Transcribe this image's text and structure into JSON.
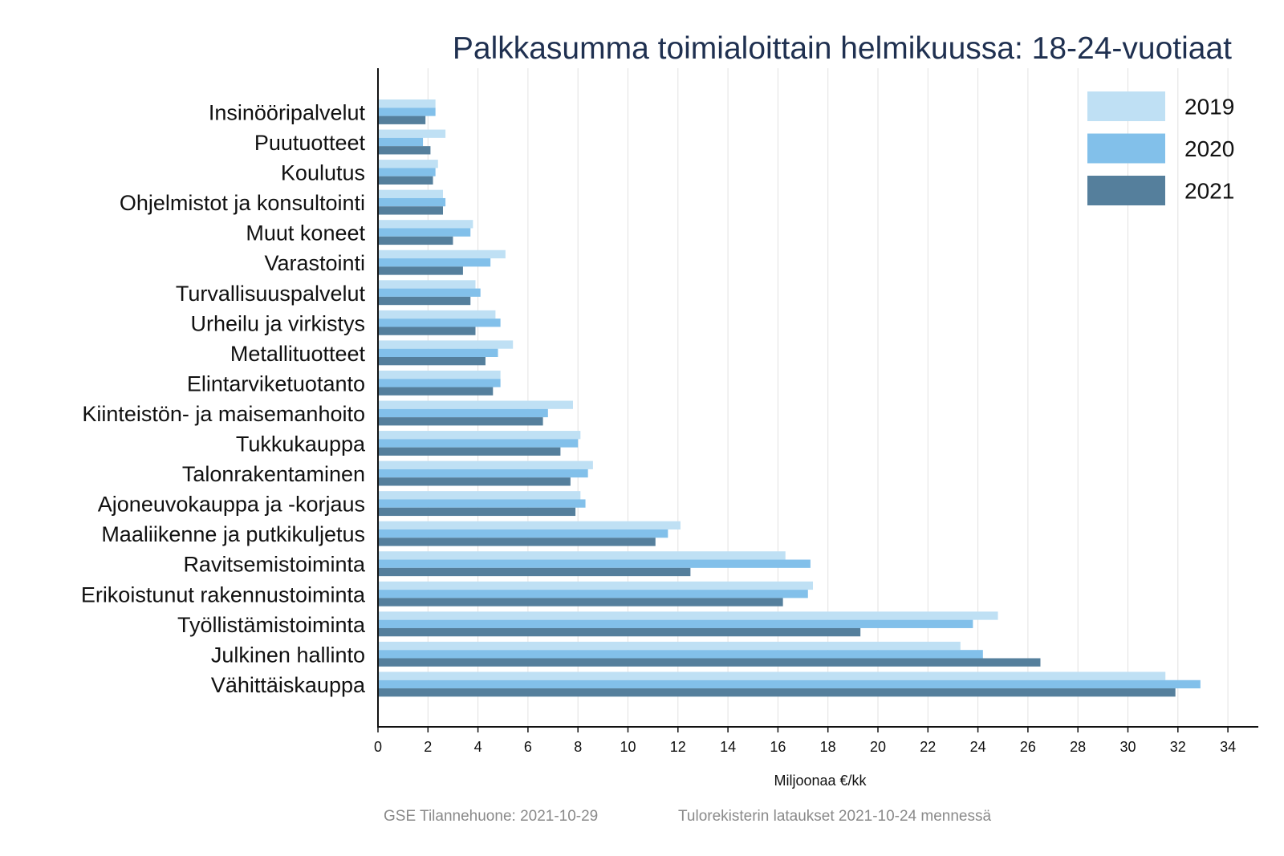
{
  "chart_data": {
    "type": "bar",
    "orientation": "horizontal",
    "title": "Palkkasumma toimialoittain helmikuussa: 18-24-vuotiaat",
    "xlabel": "Miljoonaa €/kk",
    "ylabel": "",
    "xlim": [
      0,
      35
    ],
    "xticks": [
      0,
      2,
      4,
      6,
      8,
      10,
      12,
      14,
      16,
      18,
      20,
      22,
      24,
      26,
      28,
      30,
      32,
      34
    ],
    "grid": "vertical",
    "legend_position": "top-right",
    "categories": [
      "Insinööripalvelut",
      "Puutuotteet",
      "Koulutus",
      "Ohjelmistot ja konsultointi",
      "Muut koneet",
      "Varastointi",
      "Turvallisuuspalvelut",
      "Urheilu ja virkistys",
      "Metallituotteet",
      "Elintarviketuotanto",
      "Kiinteistön- ja maisemanhoito",
      "Tukkukauppa",
      "Talonrakentaminen",
      "Ajoneuvokauppa ja -korjaus",
      "Maaliikenne ja putkikuljetus",
      "Ravitsemistoiminta",
      "Erikoistunut rakennustoiminta",
      "Työllistämistoiminta",
      "Julkinen hallinto",
      "Vähittäiskauppa"
    ],
    "series": [
      {
        "name": "2019",
        "color": "#bfe0f4",
        "values": [
          2.3,
          2.7,
          2.4,
          2.6,
          3.8,
          5.1,
          3.9,
          4.7,
          5.4,
          4.9,
          7.8,
          8.1,
          8.6,
          8.1,
          12.1,
          16.3,
          17.4,
          24.8,
          23.3,
          31.5
        ]
      },
      {
        "name": "2020",
        "color": "#82c0ea",
        "values": [
          2.3,
          1.8,
          2.3,
          2.7,
          3.7,
          4.5,
          4.1,
          4.9,
          4.8,
          4.9,
          6.8,
          8.0,
          8.4,
          8.3,
          11.6,
          17.3,
          17.2,
          23.8,
          24.2,
          32.9
        ]
      },
      {
        "name": "2021",
        "color": "#557f9c",
        "values": [
          1.9,
          2.1,
          2.2,
          2.6,
          3.0,
          3.4,
          3.7,
          3.9,
          4.3,
          4.6,
          6.6,
          7.3,
          7.7,
          7.9,
          11.1,
          12.5,
          16.2,
          19.3,
          26.5,
          31.9
        ]
      }
    ]
  },
  "footer": {
    "source": "GSE Tilannehuone: 2021-10-29",
    "note": "Tulorekisterin lataukset 2021-10-24 mennessä"
  },
  "colors": {
    "grid": "#e2e2e2",
    "axis": "#111111",
    "title": "#1f3050"
  }
}
